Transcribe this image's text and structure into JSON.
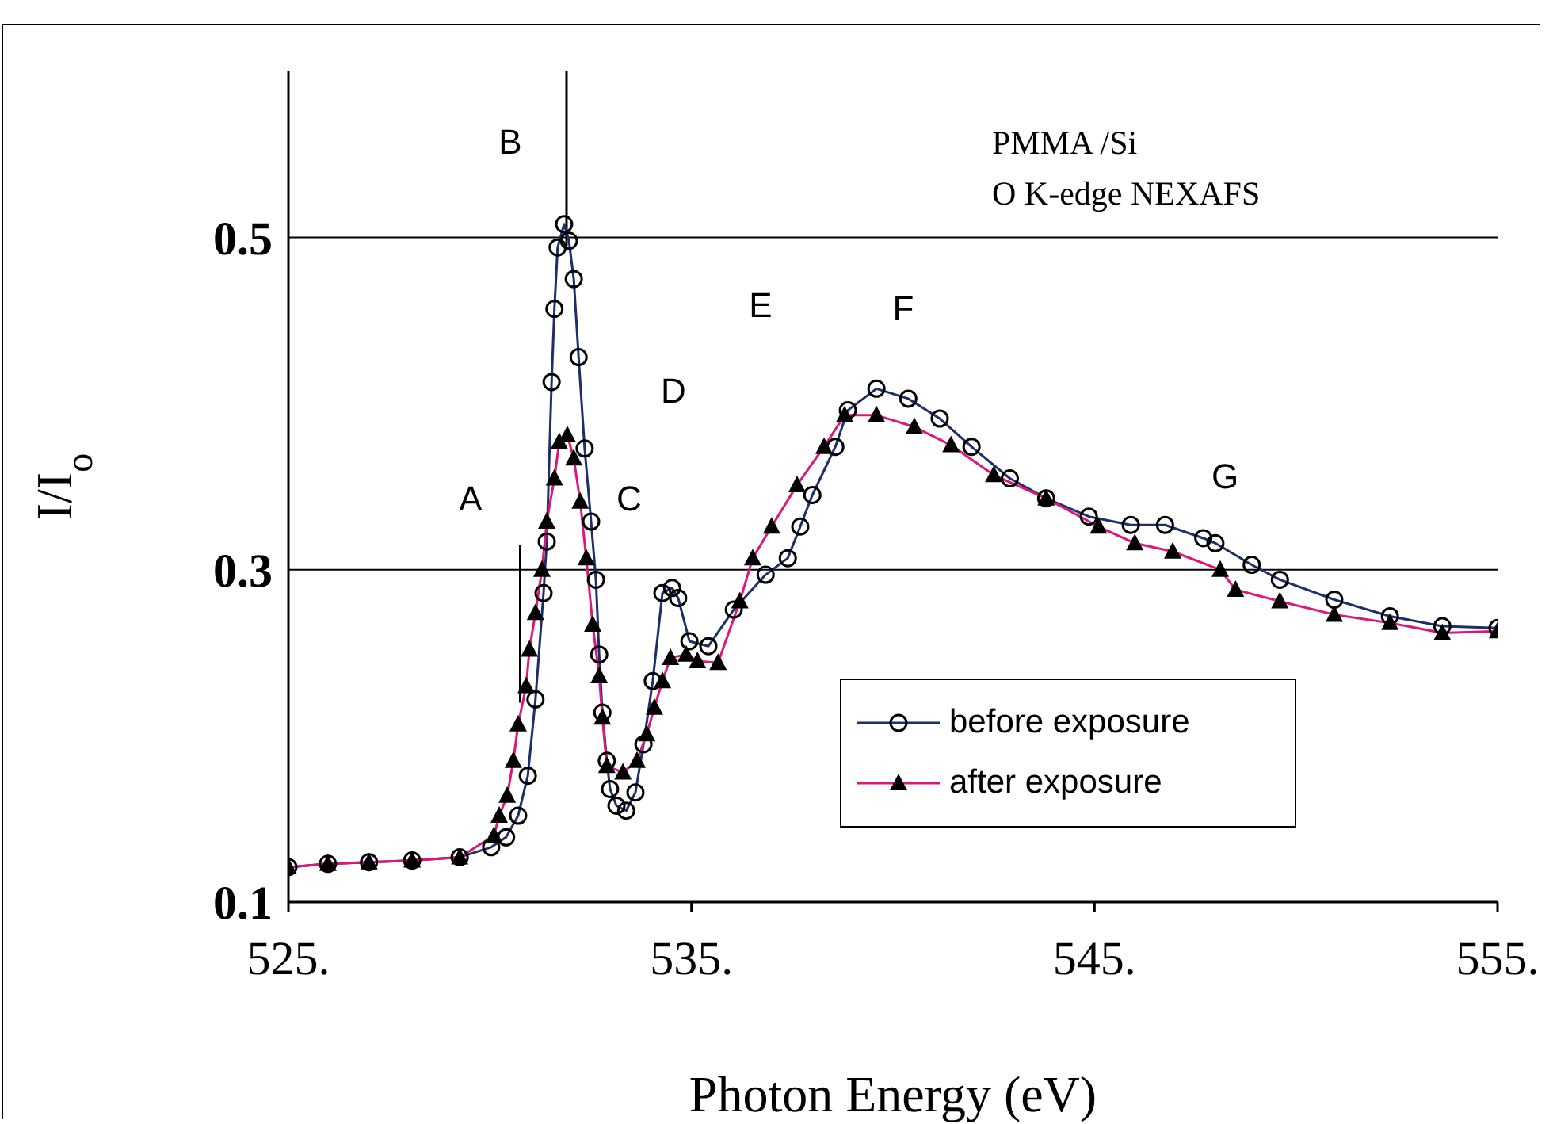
{
  "chart_data": {
    "type": "line",
    "xlabel": "Photon Energy (eV)",
    "ylabel": "I/I$_{o}$",
    "xlim": [
      525,
      555
    ],
    "xticks": [
      {
        "value": 525,
        "label": "525."
      },
      {
        "value": 535,
        "label": "535."
      },
      {
        "value": 545,
        "label": "545."
      },
      {
        "value": 555,
        "label": "555."
      }
    ],
    "ylim": [
      0.1,
      0.6
    ],
    "yticks": [
      0.1,
      0.3,
      0.5
    ],
    "grid": "y",
    "legend": "bottom right",
    "line_style": "solid",
    "ref_lines": [
      {
        "axis": "x",
        "value": 531.9,
        "label": null
      },
      {
        "axis": "x",
        "value": 530.75,
        "label": null
      }
    ],
    "annotations": [
      "PMMA /Si",
      "O K-edge NEXAFS",
      "A",
      "B",
      "C",
      "D",
      "E",
      "F",
      "G"
    ],
    "series": [
      {
        "name": "before exposure",
        "color": "#1f2d6b",
        "marker": "circle",
        "x": [
          525,
          525.98,
          527,
          528.07,
          529.25,
          530.03,
          530.4,
          530.7,
          530.94,
          531.13,
          531.33,
          531.41,
          531.53,
          531.6,
          531.68,
          531.84,
          531.96,
          532.08,
          532.2,
          532.35,
          532.51,
          532.63,
          532.71,
          532.79,
          532.9,
          532.98,
          533.14,
          533.38,
          533.61,
          533.81,
          534.04,
          534.28,
          534.52,
          534.67,
          534.95,
          535.42,
          536.05,
          536.84,
          537.39,
          537.7,
          538.0,
          538.57,
          538.88,
          539.59,
          540.38,
          541.16,
          541.95,
          542.9,
          543.8,
          544.86,
          545.9,
          546.75,
          547.7,
          548.0,
          548.9,
          549.6,
          550.95,
          552.33,
          553.63,
          555
        ],
        "values": [
          0.121,
          0.123,
          0.124,
          0.125,
          0.127,
          0.133,
          0.139,
          0.152,
          0.176,
          0.222,
          0.286,
          0.317,
          0.413,
          0.457,
          0.494,
          0.508,
          0.498,
          0.475,
          0.428,
          0.373,
          0.329,
          0.294,
          0.249,
          0.214,
          0.185,
          0.168,
          0.158,
          0.155,
          0.166,
          0.195,
          0.233,
          0.286,
          0.289,
          0.283,
          0.257,
          0.254,
          0.276,
          0.297,
          0.307,
          0.326,
          0.345,
          0.374,
          0.396,
          0.409,
          0.403,
          0.391,
          0.374,
          0.355,
          0.343,
          0.332,
          0.327,
          0.327,
          0.319,
          0.316,
          0.303,
          0.294,
          0.282,
          0.272,
          0.266,
          0.265
        ]
      },
      {
        "name": "after exposure",
        "color": "#e0157a",
        "marker": "triangle",
        "x": [
          525,
          525.98,
          527,
          528.07,
          529.25,
          530.1,
          530.23,
          530.43,
          530.58,
          530.7,
          530.9,
          530.98,
          531.13,
          531.29,
          531.41,
          531.6,
          531.72,
          531.92,
          532.08,
          532.24,
          532.39,
          532.55,
          532.71,
          532.79,
          532.9,
          533.3,
          533.65,
          533.89,
          534.08,
          534.28,
          534.48,
          534.87,
          535.15,
          535.66,
          536.2,
          536.52,
          536.99,
          537.62,
          538.29,
          538.8,
          539.59,
          540.53,
          541.44,
          542.5,
          543.8,
          545.1,
          546.0,
          546.94,
          548.12,
          548.5,
          549.6,
          550.95,
          552.33,
          553.63,
          555
        ],
        "values": [
          0.121,
          0.123,
          0.124,
          0.125,
          0.127,
          0.14,
          0.152,
          0.164,
          0.185,
          0.207,
          0.23,
          0.252,
          0.274,
          0.3,
          0.329,
          0.355,
          0.377,
          0.381,
          0.367,
          0.341,
          0.307,
          0.267,
          0.236,
          0.211,
          0.182,
          0.178,
          0.185,
          0.201,
          0.217,
          0.233,
          0.247,
          0.249,
          0.245,
          0.244,
          0.281,
          0.307,
          0.326,
          0.351,
          0.374,
          0.393,
          0.393,
          0.386,
          0.375,
          0.357,
          0.343,
          0.326,
          0.316,
          0.311,
          0.3,
          0.288,
          0.281,
          0.273,
          0.268,
          0.262,
          0.263
        ]
      }
    ]
  }
}
